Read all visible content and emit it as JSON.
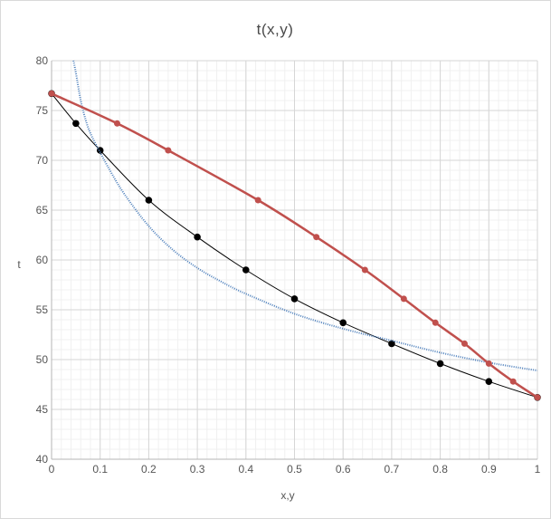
{
  "chart_data": {
    "type": "line",
    "title": "t(x,y)",
    "xlabel": "x,y",
    "ylabel": "t",
    "xlim": [
      0,
      1
    ],
    "ylim": [
      40,
      80
    ],
    "x_ticks": [
      "0",
      "0.1",
      "0.2",
      "0.3",
      "0.4",
      "0.5",
      "0.6",
      "0.7",
      "0.8",
      "0.9",
      "1"
    ],
    "y_ticks": [
      "40",
      "45",
      "50",
      "55",
      "60",
      "65",
      "70",
      "75",
      "80"
    ],
    "grid": true,
    "legend": "none",
    "series": [
      {
        "color": "#000000",
        "style": "line-with-markers",
        "points": [
          [
            0,
            76.7
          ],
          [
            0.05,
            73.7
          ],
          [
            0.1,
            71.0
          ],
          [
            0.2,
            66.0
          ],
          [
            0.3,
            62.3
          ],
          [
            0.4,
            59.0
          ],
          [
            0.5,
            56.1
          ],
          [
            0.6,
            53.7
          ],
          [
            0.7,
            51.6
          ],
          [
            0.8,
            49.6
          ],
          [
            0.9,
            47.8
          ],
          [
            1.0,
            46.2
          ]
        ]
      },
      {
        "color": "#c0504d",
        "style": "line-with-markers",
        "points": [
          [
            0,
            76.7
          ],
          [
            0.135,
            73.7
          ],
          [
            0.24,
            71.0
          ],
          [
            0.425,
            66.0
          ],
          [
            0.545,
            62.3
          ],
          [
            0.645,
            59.0
          ],
          [
            0.725,
            56.1
          ],
          [
            0.79,
            53.7
          ],
          [
            0.85,
            51.6
          ],
          [
            0.9,
            49.6
          ],
          [
            0.95,
            47.8
          ],
          [
            1.0,
            46.2
          ]
        ]
      },
      {
        "color": "#4f81bd",
        "style": "dotted-curve",
        "points": [
          [
            0.045,
            80.0
          ],
          [
            0.05,
            78.8
          ],
          [
            0.06,
            76.0
          ],
          [
            0.07,
            74.1
          ],
          [
            0.08,
            72.7
          ],
          [
            0.1,
            70.8
          ],
          [
            0.12,
            69.0
          ],
          [
            0.15,
            66.6
          ],
          [
            0.2,
            63.4
          ],
          [
            0.25,
            61.0
          ],
          [
            0.3,
            59.2
          ],
          [
            0.35,
            57.8
          ],
          [
            0.4,
            56.6
          ],
          [
            0.5,
            54.6
          ],
          [
            0.6,
            53.1
          ],
          [
            0.7,
            51.9
          ],
          [
            0.8,
            50.7
          ],
          [
            0.9,
            49.7
          ],
          [
            1.0,
            48.9
          ]
        ]
      }
    ]
  }
}
